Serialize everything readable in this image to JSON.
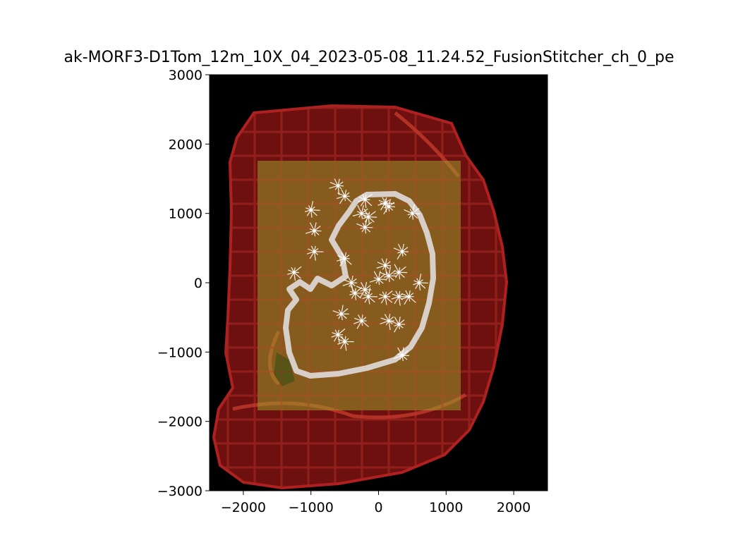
{
  "chart_data": {
    "type": "image",
    "title": "ak-MORF3-D1Tom_12m_10X_04_2023-05-08_11.24.52_FusionStitcher_ch_0_pe",
    "xlabel": "",
    "ylabel": "",
    "xlim": [
      -2500,
      2500
    ],
    "ylim": [
      3000,
      -3000
    ],
    "x_inverted": false,
    "y_inverted": true,
    "x_ticks": [
      -2000,
      -1000,
      0,
      1000,
      2000
    ],
    "x_tick_labels": [
      "−2000",
      "−1000",
      "0",
      "1000",
      "2000"
    ],
    "y_ticks": [
      -3000,
      -2000,
      -1000,
      0,
      1000,
      2000,
      3000
    ],
    "y_tick_labels": [
      "−3000",
      "−2000",
      "−1000",
      "0",
      "1000",
      "2000",
      "3000"
    ],
    "grid": false,
    "legend": "none",
    "layers": [
      {
        "name": "background",
        "color": "#000000"
      },
      {
        "name": "atlas annotation overlay",
        "color": "#8a1414"
      },
      {
        "name": "stitched image tile",
        "color": "#9a9a2a",
        "x_range": [
          -1800,
          1200
        ],
        "y_range": [
          -1600,
          1900
        ]
      },
      {
        "name": "region outline",
        "color": "#d8d0c8"
      },
      {
        "name": "neuron reconstructions",
        "color": "#ffffff",
        "count": 34
      }
    ],
    "neurons": [
      {
        "x": -600,
        "y": -750
      },
      {
        "x": -500,
        "y": -850
      },
      {
        "x": -250,
        "y": -550
      },
      {
        "x": 150,
        "y": -550
      },
      {
        "x": 300,
        "y": -600
      },
      {
        "x": 350,
        "y": -1050
      },
      {
        "x": -550,
        "y": -450
      },
      {
        "x": -350,
        "y": -150
      },
      {
        "x": -150,
        "y": -200
      },
      {
        "x": 100,
        "y": -200
      },
      {
        "x": 300,
        "y": -200
      },
      {
        "x": 450,
        "y": -200
      },
      {
        "x": -400,
        "y": 0
      },
      {
        "x": -200,
        "y": -100
      },
      {
        "x": 0,
        "y": 50
      },
      {
        "x": 150,
        "y": 100
      },
      {
        "x": 300,
        "y": 150
      },
      {
        "x": 600,
        "y": 0
      },
      {
        "x": -1250,
        "y": 150
      },
      {
        "x": -950,
        "y": 450
      },
      {
        "x": -500,
        "y": 350
      },
      {
        "x": 100,
        "y": 250
      },
      {
        "x": 350,
        "y": 450
      },
      {
        "x": -950,
        "y": 750
      },
      {
        "x": -200,
        "y": 800
      },
      {
        "x": -150,
        "y": 950
      },
      {
        "x": -1000,
        "y": 1050
      },
      {
        "x": -200,
        "y": 1200
      },
      {
        "x": 100,
        "y": 1150
      },
      {
        "x": -500,
        "y": 1250
      },
      {
        "x": -600,
        "y": 1400
      },
      {
        "x": 150,
        "y": 1100
      },
      {
        "x": -250,
        "y": 1000
      },
      {
        "x": 500,
        "y": 1000
      }
    ]
  }
}
